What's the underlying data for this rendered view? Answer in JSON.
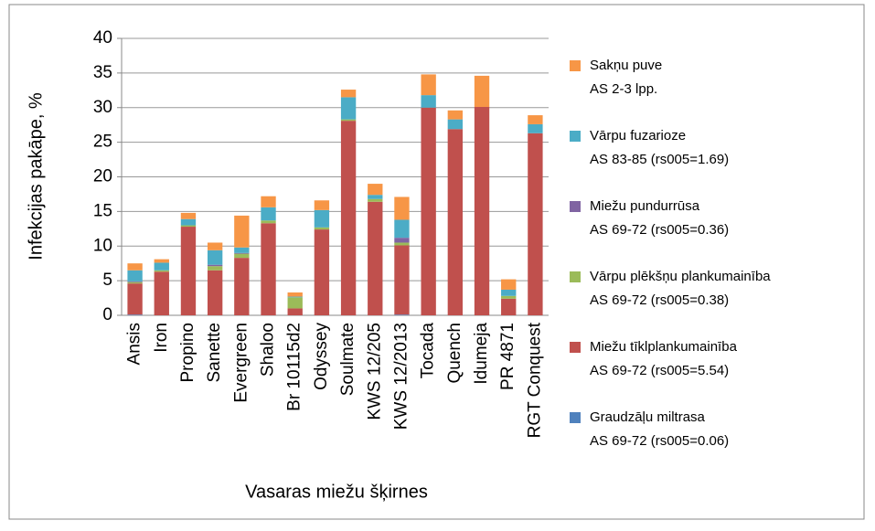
{
  "chart_data": {
    "type": "stacked_bar",
    "ylabel": "Infekcijas pakāpe, %",
    "xlabel": "Vasaras miežu šķirnes",
    "categories": [
      "Ansis",
      "Iron",
      "Propino",
      "Sanette",
      "Evergreen",
      "Shaloo",
      "Br 10115d2",
      "Odyssey",
      "Soulmate",
      "KWS 12/205",
      "KWS 12/2013",
      "Tocada",
      "Quench",
      "Idumeja",
      "PR 4871",
      "RGT Conquest"
    ],
    "ylim": [
      0,
      40
    ],
    "yticks": [
      0,
      5,
      10,
      15,
      20,
      25,
      30,
      35,
      40
    ],
    "grid": true,
    "legend": "right",
    "series": [
      {
        "name": "Graudzāļu miltrasa",
        "stage": "AS 69-72 (rs005=0.06)",
        "color": "#4f81bd",
        "values": [
          0.1,
          0,
          0,
          0,
          0,
          0,
          0,
          0,
          0,
          0,
          0.1,
          0,
          0,
          0,
          0,
          0
        ]
      },
      {
        "name": "Miežu tīklplankumainība",
        "stage": "AS 69-72 (rs005=5.54)",
        "color": "#c0504d",
        "values": [
          4.5,
          6.3,
          12.8,
          6.5,
          8.3,
          13.3,
          1.0,
          12.4,
          28.1,
          16.4,
          10.0,
          30.0,
          26.9,
          30.1,
          2.4,
          26.3
        ]
      },
      {
        "name": "Vārpu plēkšņu plankumainība",
        "stage": "AS 69-72 (rs005=0.38)",
        "color": "#9bbb59",
        "values": [
          0.2,
          0.2,
          0.2,
          0.6,
          0.6,
          0.4,
          1.6,
          0.3,
          0.2,
          0.4,
          0.4,
          0,
          0,
          0,
          0.4,
          0
        ]
      },
      {
        "name": "Miežu pundurrūsa",
        "stage": "AS 69-72 (rs005=0.36)",
        "color": "#8064a2",
        "values": [
          0.1,
          0,
          0,
          0.2,
          0.1,
          0,
          0,
          0,
          0,
          0,
          0.7,
          0,
          0,
          0,
          0,
          0
        ]
      },
      {
        "name": "Vārpu fuzarioze",
        "stage": "AS 83-85 (rs005=1.69)",
        "color": "#4bacc6",
        "values": [
          1.6,
          1.1,
          0.9,
          2.1,
          0.8,
          1.9,
          0.1,
          2.5,
          3.2,
          0.6,
          2.6,
          1.8,
          1.4,
          0,
          0.9,
          1.3
        ]
      },
      {
        "name": "Sakņu puve",
        "stage": "AS 2-3 lpp.",
        "color": "#f79646",
        "values": [
          1.0,
          0.5,
          0.9,
          1.1,
          4.6,
          1.6,
          0.6,
          1.4,
          1.1,
          1.6,
          3.3,
          3.0,
          1.3,
          4.5,
          1.5,
          1.3
        ]
      }
    ]
  }
}
